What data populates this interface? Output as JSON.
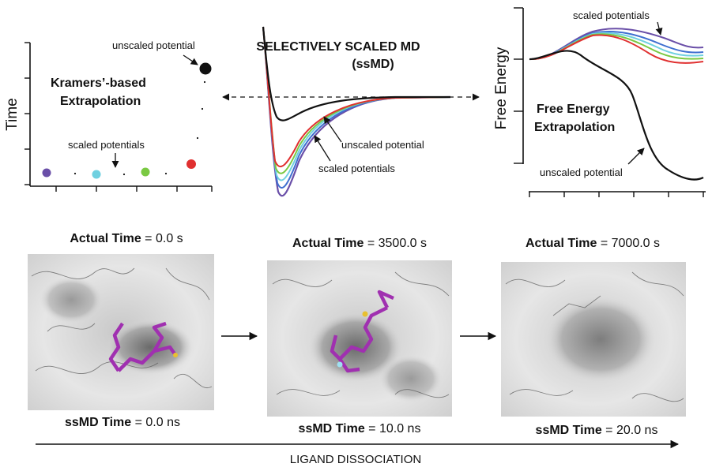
{
  "top": {
    "left_panel": {
      "y_axis_label": "Time",
      "title_line1": "Kramers’-based",
      "title_line2": "Extrapolation",
      "unscaled_label": "unscaled potential",
      "scaled_label": "scaled potentials"
    },
    "center_panel": {
      "title_line1": "SELECTIVELY SCALED MD",
      "title_line2": "(ssMD)",
      "unscaled_label": "unscaled potential",
      "scaled_label": "scaled potentials"
    },
    "right_panel": {
      "y_axis_label": "Free Energy",
      "title_line1": "Free Energy",
      "title_line2": "Extrapolation",
      "scaled_label": "scaled potentials",
      "unscaled_label": "unscaled potential"
    }
  },
  "frames": [
    {
      "actual_label": "Actual Time",
      "actual_value": " = 0.0 s",
      "ssmd_label": "ssMD Time",
      "ssmd_value": " = 0.0 ns"
    },
    {
      "actual_label": "Actual Time",
      "actual_value": " = 3500.0 s",
      "ssmd_label": "ssMD Time",
      "ssmd_value": " = 10.0 ns"
    },
    {
      "actual_label": "Actual Time",
      "actual_value": " = 7000.0 s",
      "ssmd_label": "ssMD Time",
      "ssmd_value": " = 20.0 ns"
    }
  ],
  "bottom_axis_label": "LIGAND DISSOCIATION",
  "colors": {
    "purple": "#6a4fa8",
    "blue": "#3f6fd0",
    "cyan": "#6fd0e0",
    "green": "#7ac943",
    "red": "#e03030",
    "black": "#111111",
    "ligand": "#a030b0"
  }
}
